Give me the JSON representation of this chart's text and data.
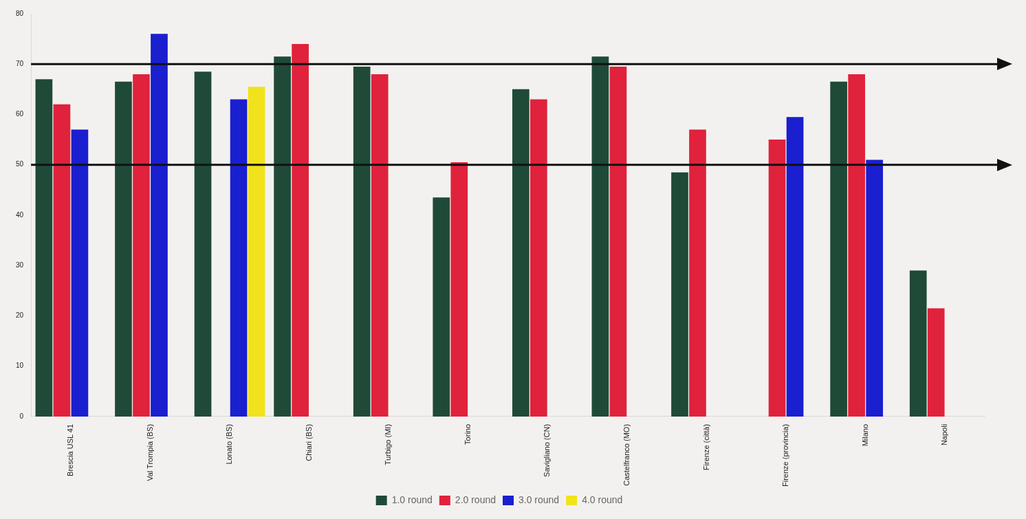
{
  "chart_data": {
    "type": "bar",
    "categories": [
      "Brescia USL 41",
      "Val Trompia (BS)",
      "Lonato (BS)",
      "Chiari (BS)",
      "Turbigo (MI)",
      "Torino",
      "Savigliano (CN)",
      "Castelfranco (MO)",
      "Firenze (città)",
      "Firenze (provincia)",
      "Milano",
      "Napoli"
    ],
    "series": [
      {
        "name": "1.0 round",
        "color": "#1f4a38",
        "values": [
          67,
          66.5,
          68.5,
          71.5,
          69.5,
          43.5,
          65,
          71.5,
          48.5,
          null,
          66.5,
          29
        ]
      },
      {
        "name": "2.0 round",
        "color": "#e0223c",
        "values": [
          62,
          68,
          null,
          74,
          68,
          50.5,
          63,
          69.5,
          57,
          55,
          68,
          21.5
        ]
      },
      {
        "name": "3.0 round",
        "color": "#1a1fcf",
        "values": [
          57,
          76,
          63,
          null,
          null,
          null,
          null,
          null,
          null,
          59.5,
          51,
          null
        ]
      },
      {
        "name": "4.0 round",
        "color": "#f1e21c",
        "values": [
          null,
          null,
          65.5,
          null,
          null,
          null,
          null,
          null,
          null,
          null,
          null,
          null
        ]
      }
    ],
    "ylim": [
      0,
      80
    ],
    "yticks": [
      0,
      10,
      20,
      30,
      40,
      50,
      60,
      70,
      80
    ],
    "ref_lines": [
      {
        "axis": "y",
        "value": 70,
        "color": "#111111"
      },
      {
        "axis": "y",
        "value": 50,
        "color": "#111111"
      }
    ],
    "grid": false,
    "legend": "bottom"
  }
}
